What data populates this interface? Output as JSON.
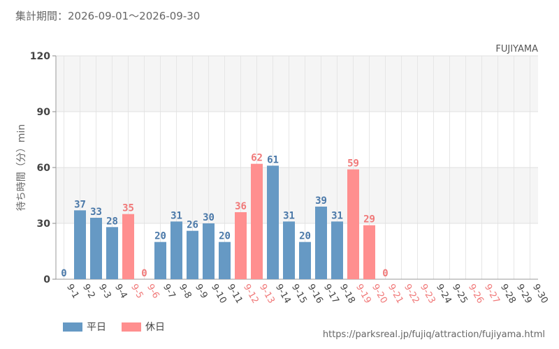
{
  "header": {
    "period": "集計期間：2026-09-01～2026-09-30"
  },
  "legend": {
    "weekday": "平日",
    "holiday": "休日"
  },
  "source": "https://parksreal.jp/fujiq/attraction/fujiyama.html",
  "colors": {
    "weekday": "#6699c4",
    "holiday": "#ff8f8f",
    "weekday_text": "#4a78a8",
    "holiday_text": "#f07878",
    "axis_text": "#444444"
  },
  "chart_data": {
    "type": "bar",
    "title": "FUJIYAMA",
    "ylabel": "待ち時間（分）min",
    "ylim": [
      0,
      120
    ],
    "yticks": [
      0,
      30,
      60,
      90,
      120
    ],
    "categories": [
      "9-1",
      "9-2",
      "9-3",
      "9-4",
      "9-5",
      "9-6",
      "9-7",
      "9-8",
      "9-9",
      "9-10",
      "9-11",
      "9-12",
      "9-13",
      "9-14",
      "9-15",
      "9-16",
      "9-17",
      "9-18",
      "9-19",
      "9-20",
      "9-21",
      "9-22",
      "9-23",
      "9-24",
      "9-25",
      "9-26",
      "9-27",
      "9-28",
      "9-29",
      "9-30"
    ],
    "values": [
      0,
      37,
      33,
      28,
      35,
      0,
      20,
      31,
      26,
      30,
      20,
      36,
      62,
      61,
      31,
      20,
      39,
      31,
      59,
      29,
      0,
      null,
      null,
      null,
      null,
      null,
      null,
      null,
      null,
      null
    ],
    "day_type": [
      "weekday",
      "weekday",
      "weekday",
      "weekday",
      "holiday",
      "holiday",
      "weekday",
      "weekday",
      "weekday",
      "weekday",
      "weekday",
      "holiday",
      "holiday",
      "weekday",
      "weekday",
      "weekday",
      "weekday",
      "weekday",
      "holiday",
      "holiday",
      "holiday",
      "holiday",
      "holiday",
      "weekday",
      "weekday",
      "holiday",
      "holiday",
      "weekday",
      "weekday",
      "weekday"
    ]
  }
}
